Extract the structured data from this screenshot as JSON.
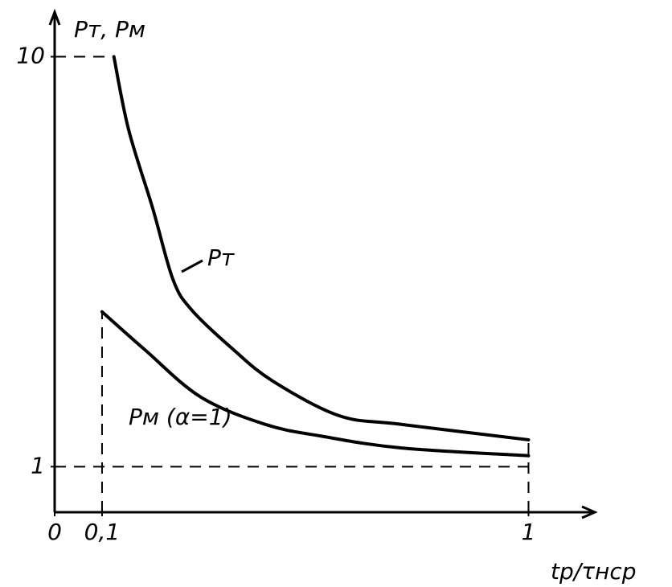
{
  "chart_data": {
    "type": "line",
    "y_label": "Pт, Pм",
    "x_label": "tр/τнср",
    "xlim": [
      0,
      1.14
    ],
    "ylim": [
      0,
      10.98
    ],
    "xticks": [
      0,
      {
        "value": 0.1,
        "label": "0,1"
      },
      1
    ],
    "yticks": [
      1,
      10
    ],
    "series": [
      {
        "name": "Pт",
        "color": "#000000",
        "x": [
          0.125,
          0.156,
          0.207,
          0.25,
          0.29,
          0.375,
          0.46,
          0.6,
          0.73,
          1
        ],
        "values": [
          10,
          8.4,
          6.67,
          5.1,
          4.43,
          3.59,
          2.88,
          2.12,
          1.93,
          1.59
        ]
      },
      {
        "name": "Pм (α=1)",
        "color": "#000000",
        "x": [
          0.1,
          0.19,
          0.308,
          0.444,
          0.563,
          0.732,
          1
        ],
        "values": [
          4.4,
          3.57,
          2.53,
          1.93,
          1.67,
          1.41,
          1.24
        ]
      }
    ]
  }
}
